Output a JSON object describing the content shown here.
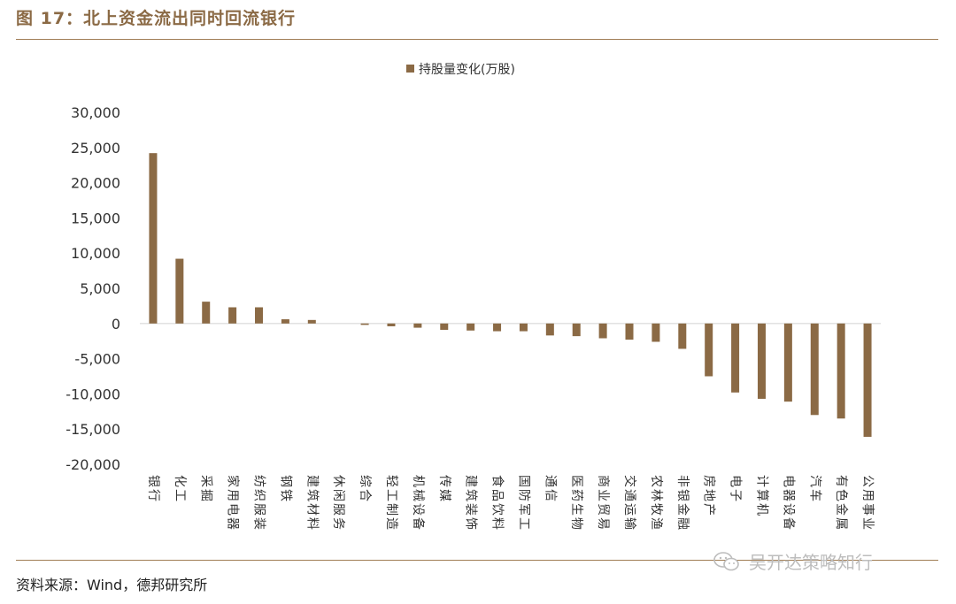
{
  "figure_title": "图 17：北上资金流出同时回流银行",
  "source": "资料来源：Wind，德邦研究所",
  "watermark": "吴开达策略知行",
  "colors": {
    "bar": "#8b6a45",
    "accent": "#a07d55",
    "axis": "#d9d9d9"
  },
  "chart_data": {
    "type": "bar",
    "legend": "持股量变化(万股)",
    "legend_position": "top",
    "ylim": [
      -20000,
      30000
    ],
    "yticks": [
      30000,
      25000,
      20000,
      15000,
      10000,
      5000,
      0,
      -5000,
      -10000,
      -15000,
      -20000
    ],
    "ytick_labels": [
      "30,000",
      "25,000",
      "20,000",
      "15,000",
      "10,000",
      "5,000",
      "0",
      "-5,000",
      "-10,000",
      "-15,000",
      "-20,000"
    ],
    "grid": false,
    "categories": [
      "银行",
      "化工",
      "采掘",
      "家用电器",
      "纺织服装",
      "钢铁",
      "建筑材料",
      "休闲服务",
      "综合",
      "轻工制造",
      "机械设备",
      "传媒",
      "建筑装饰",
      "食品饮料",
      "国防军工",
      "通信",
      "医药生物",
      "商业贸易",
      "交通运输",
      "农林牧渔",
      "非银金融",
      "房地产",
      "电子",
      "计算机",
      "电器设备",
      "汽车",
      "有色金属",
      "公用事业"
    ],
    "values": [
      24200,
      9200,
      3100,
      2300,
      2300,
      600,
      500,
      0,
      -200,
      -400,
      -600,
      -900,
      -1000,
      -1100,
      -1100,
      -1700,
      -1800,
      -2100,
      -2300,
      -2600,
      -3600,
      -7500,
      -9800,
      -10700,
      -11100,
      -13000,
      -13500,
      -16100
    ]
  }
}
